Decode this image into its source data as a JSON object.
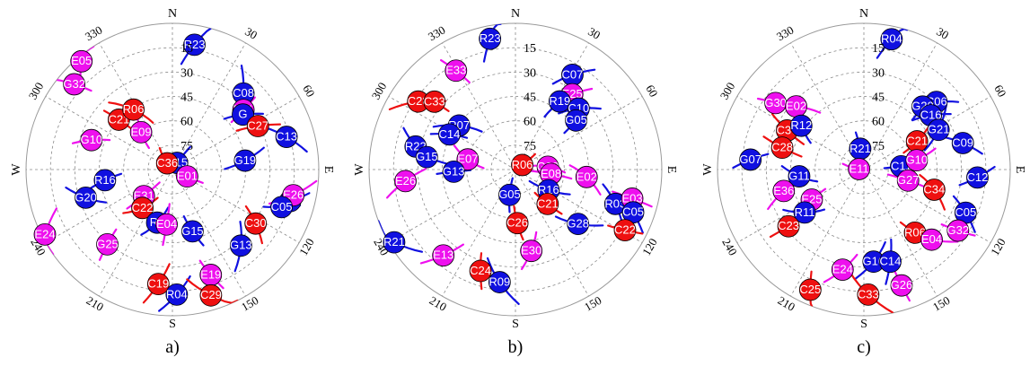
{
  "colors": {
    "gps": "#1010e0",
    "galileo": "#ee10ee",
    "beidou": "#ee1010",
    "glonass": "#1010e0",
    "grid": "#8a8a8a"
  },
  "chart_data": [
    {
      "type": "polar-skyplot",
      "panel_label": "a)",
      "cardinal_labels": {
        "N": "N",
        "E": "E",
        "S": "S",
        "W": "W"
      },
      "azimuth_tick_labels": [
        "30",
        "60",
        "120",
        "150",
        "210",
        "240",
        "300",
        "330"
      ],
      "elevation_tick_labels": [
        "15",
        "30",
        "45",
        "60",
        "75"
      ],
      "satellites": [
        {
          "id": "R23",
          "az": 10,
          "el": 12,
          "system": "gps"
        },
        {
          "id": "E05",
          "az": 320,
          "el": 3,
          "system": "galileo"
        },
        {
          "id": "G32",
          "az": 311,
          "el": 10,
          "system": "galileo"
        },
        {
          "id": "C08",
          "az": 43,
          "el": 26,
          "system": "gps"
        },
        {
          "id": "E21",
          "az": 50,
          "el": 33,
          "system": "galileo"
        },
        {
          "id": "G",
          "az": 52,
          "el": 35,
          "system": "gps"
        },
        {
          "id": "C27",
          "az": 63,
          "el": 31,
          "system": "beidou"
        },
        {
          "id": "C13",
          "az": 74,
          "el": 17,
          "system": "gps"
        },
        {
          "id": "C21",
          "az": 313,
          "el": 45,
          "system": "beidou"
        },
        {
          "id": "R06",
          "az": 327,
          "el": 46,
          "system": "beidou"
        },
        {
          "id": "G10",
          "az": 290,
          "el": 37,
          "system": "galileo"
        },
        {
          "id": "E09",
          "az": 320,
          "el": 60,
          "system": "galileo"
        },
        {
          "id": "R15",
          "az": 35,
          "el": 85,
          "system": "gps"
        },
        {
          "id": "C36",
          "az": 320,
          "el": 85,
          "system": "beidou"
        },
        {
          "id": "E01",
          "az": 115,
          "el": 80,
          "system": "galileo"
        },
        {
          "id": "G19",
          "az": 83,
          "el": 45,
          "system": "gps"
        },
        {
          "id": "R16",
          "az": 261,
          "el": 48,
          "system": "gps"
        },
        {
          "id": "G20",
          "az": 252,
          "el": 34,
          "system": "gps"
        },
        {
          "id": "E31",
          "az": 227,
          "el": 66,
          "system": "galileo"
        },
        {
          "id": "C22",
          "az": 218,
          "el": 60,
          "system": "beidou"
        },
        {
          "id": "R1",
          "az": 105,
          "el": 15,
          "system": "gps"
        },
        {
          "id": "E26",
          "az": 102,
          "el": 14,
          "system": "galileo"
        },
        {
          "id": "C05",
          "az": 109,
          "el": 19,
          "system": "gps"
        },
        {
          "id": "R0",
          "az": 196,
          "el": 56,
          "system": "gps"
        },
        {
          "id": "E04",
          "az": 186,
          "el": 56,
          "system": "galileo"
        },
        {
          "id": "C30",
          "az": 123,
          "el": 29,
          "system": "beidou"
        },
        {
          "id": "G15",
          "az": 162,
          "el": 50,
          "system": "gps"
        },
        {
          "id": "E24",
          "az": 243,
          "el": 2,
          "system": "galileo"
        },
        {
          "id": "G25",
          "az": 221,
          "el": 29,
          "system": "galileo"
        },
        {
          "id": "G13",
          "az": 138,
          "el": 27,
          "system": "gps"
        },
        {
          "id": "C19",
          "az": 187,
          "el": 19,
          "system": "beidou"
        },
        {
          "id": "R04",
          "az": 178,
          "el": 13,
          "system": "gps"
        },
        {
          "id": "E19",
          "az": 160,
          "el": 21,
          "system": "galileo"
        },
        {
          "id": "C29",
          "az": 163,
          "el": 9,
          "system": "beidou"
        }
      ]
    },
    {
      "type": "polar-skyplot",
      "panel_label": "b)",
      "cardinal_labels": {
        "N": "N",
        "E": "E",
        "S": "S",
        "W": "W"
      },
      "azimuth_tick_labels": [
        "30",
        "60",
        "120",
        "150",
        "210",
        "240",
        "300",
        "330"
      ],
      "elevation_tick_labels": [
        "15",
        "30",
        "45",
        "60",
        "75"
      ],
      "satellites": [
        {
          "id": "R23",
          "az": 349,
          "el": 8,
          "system": "gps"
        },
        {
          "id": "C07",
          "az": 31,
          "el": 22,
          "system": "gps"
        },
        {
          "id": "E33",
          "az": 329,
          "el": 19,
          "system": "galileo"
        },
        {
          "id": "C28",
          "az": 305,
          "el": 17,
          "system": "beidou"
        },
        {
          "id": "C33",
          "az": 310,
          "el": 25,
          "system": "beidou"
        },
        {
          "id": "E25",
          "az": 37,
          "el": 32,
          "system": "galileo"
        },
        {
          "id": "R19",
          "az": 33,
          "el": 40,
          "system": "gps"
        },
        {
          "id": "C10",
          "az": 46,
          "el": 36,
          "system": "gps"
        },
        {
          "id": "G05",
          "az": 51,
          "el": 42,
          "system": "gps"
        },
        {
          "id": "R07",
          "az": 308,
          "el": 46,
          "system": "gps"
        },
        {
          "id": "C14",
          "az": 298,
          "el": 44,
          "system": "gps"
        },
        {
          "id": "R22",
          "az": 283,
          "el": 27,
          "system": "gps"
        },
        {
          "id": "G15",
          "az": 278,
          "el": 35,
          "system": "gps"
        },
        {
          "id": "E07",
          "az": 282,
          "el": 60,
          "system": "galileo"
        },
        {
          "id": "G13",
          "az": 268,
          "el": 52,
          "system": "gps"
        },
        {
          "id": "E26",
          "az": 264,
          "el": 22,
          "system": "galileo"
        },
        {
          "id": "R06",
          "az": 56,
          "el": 85,
          "system": "beidou"
        },
        {
          "id": "G30",
          "az": 85,
          "el": 70,
          "system": "galileo"
        },
        {
          "id": "E08",
          "az": 97,
          "el": 68,
          "system": "galileo"
        },
        {
          "id": "E02",
          "az": 96,
          "el": 46,
          "system": "galileo"
        },
        {
          "id": "G05",
          "az": 193,
          "el": 74,
          "system": "gps"
        },
        {
          "id": "R16",
          "az": 122,
          "el": 66,
          "system": "gps"
        },
        {
          "id": "C21",
          "az": 137,
          "el": 61,
          "system": "beidou"
        },
        {
          "id": "R03",
          "az": 109,
          "el": 25,
          "system": "gps"
        },
        {
          "id": "E03",
          "az": 104,
          "el": 16,
          "system": "galileo"
        },
        {
          "id": "C05",
          "az": 110,
          "el": 13,
          "system": "gps"
        },
        {
          "id": "C26",
          "az": 178,
          "el": 57,
          "system": "beidou"
        },
        {
          "id": "G28",
          "az": 131,
          "el": 39,
          "system": "gps"
        },
        {
          "id": "C22",
          "az": 119,
          "el": 13,
          "system": "beidou"
        },
        {
          "id": "R21",
          "az": 239,
          "el": 3,
          "system": "gps"
        },
        {
          "id": "E13",
          "az": 220,
          "el": 21,
          "system": "galileo"
        },
        {
          "id": "E30",
          "az": 169,
          "el": 39,
          "system": "galileo"
        },
        {
          "id": "C24",
          "az": 199,
          "el": 24,
          "system": "beidou"
        },
        {
          "id": "R09",
          "az": 188,
          "el": 20,
          "system": "gps"
        }
      ]
    },
    {
      "type": "polar-skyplot",
      "panel_label": "c)",
      "cardinal_labels": {
        "N": "N",
        "E": "E",
        "S": "S",
        "W": "W"
      },
      "azimuth_tick_labels": [
        "30",
        "60",
        "120",
        "150",
        "210",
        "240",
        "300",
        "330"
      ],
      "elevation_tick_labels": [
        "15",
        "30",
        "45",
        "60",
        "75"
      ],
      "satellites": [
        {
          "id": "R04",
          "az": 12,
          "el": 8,
          "system": "gps"
        },
        {
          "id": "C06",
          "az": 47,
          "el": 29,
          "system": "gps"
        },
        {
          "id": "G30",
          "az": 307,
          "el": 22,
          "system": "galileo"
        },
        {
          "id": "E02",
          "az": 313,
          "el": 33,
          "system": "galileo"
        },
        {
          "id": "G20",
          "az": 43,
          "el": 37,
          "system": "gps"
        },
        {
          "id": "C16",
          "az": 51,
          "el": 37,
          "system": "gps"
        },
        {
          "id": "C37",
          "az": 297,
          "el": 37,
          "system": "beidou"
        },
        {
          "id": "R12",
          "az": 305,
          "el": 43,
          "system": "gps"
        },
        {
          "id": "R21",
          "az": 350,
          "el": 77,
          "system": "gps"
        },
        {
          "id": "G21",
          "az": 62,
          "el": 38,
          "system": "gps"
        },
        {
          "id": "C21",
          "az": 62,
          "el": 53,
          "system": "beidou"
        },
        {
          "id": "C09",
          "az": 75,
          "el": 27,
          "system": "gps"
        },
        {
          "id": "C28",
          "az": 285,
          "el": 38,
          "system": "beidou"
        },
        {
          "id": "E11",
          "az": 276,
          "el": 87,
          "system": "galileo"
        },
        {
          "id": "C11",
          "az": 85,
          "el": 67,
          "system": "gps"
        },
        {
          "id": "G10",
          "az": 80,
          "el": 57,
          "system": "galileo"
        },
        {
          "id": "G07",
          "az": 275,
          "el": 20,
          "system": "gps"
        },
        {
          "id": "G11",
          "az": 264,
          "el": 50,
          "system": "gps"
        },
        {
          "id": "G27",
          "az": 104,
          "el": 62,
          "system": "galileo"
        },
        {
          "id": "C34",
          "az": 106,
          "el": 45,
          "system": "beidou"
        },
        {
          "id": "C12",
          "az": 94,
          "el": 20,
          "system": "gps"
        },
        {
          "id": "E36",
          "az": 255,
          "el": 39,
          "system": "galileo"
        },
        {
          "id": "E25",
          "az": 240,
          "el": 53,
          "system": "galileo"
        },
        {
          "id": "R11",
          "az": 234,
          "el": 45,
          "system": "gps"
        },
        {
          "id": "C23",
          "az": 233,
          "el": 32,
          "system": "beidou"
        },
        {
          "id": "C05",
          "az": 113,
          "el": 22,
          "system": "gps"
        },
        {
          "id": "R06",
          "az": 141,
          "el": 40,
          "system": "beidou"
        },
        {
          "id": "E04",
          "az": 136,
          "el": 30,
          "system": "galileo"
        },
        {
          "id": "G32",
          "az": 123,
          "el": 21,
          "system": "galileo"
        },
        {
          "id": "G16",
          "az": 174,
          "el": 33,
          "system": "gps"
        },
        {
          "id": "C14",
          "az": 164,
          "el": 31,
          "system": "gps"
        },
        {
          "id": "E24",
          "az": 192,
          "el": 27,
          "system": "galileo"
        },
        {
          "id": "C25",
          "az": 204,
          "el": 9,
          "system": "beidou"
        },
        {
          "id": "C33",
          "az": 178,
          "el": 13,
          "system": "beidou"
        },
        {
          "id": "G26",
          "az": 162,
          "el": 15,
          "system": "galileo"
        }
      ]
    }
  ]
}
